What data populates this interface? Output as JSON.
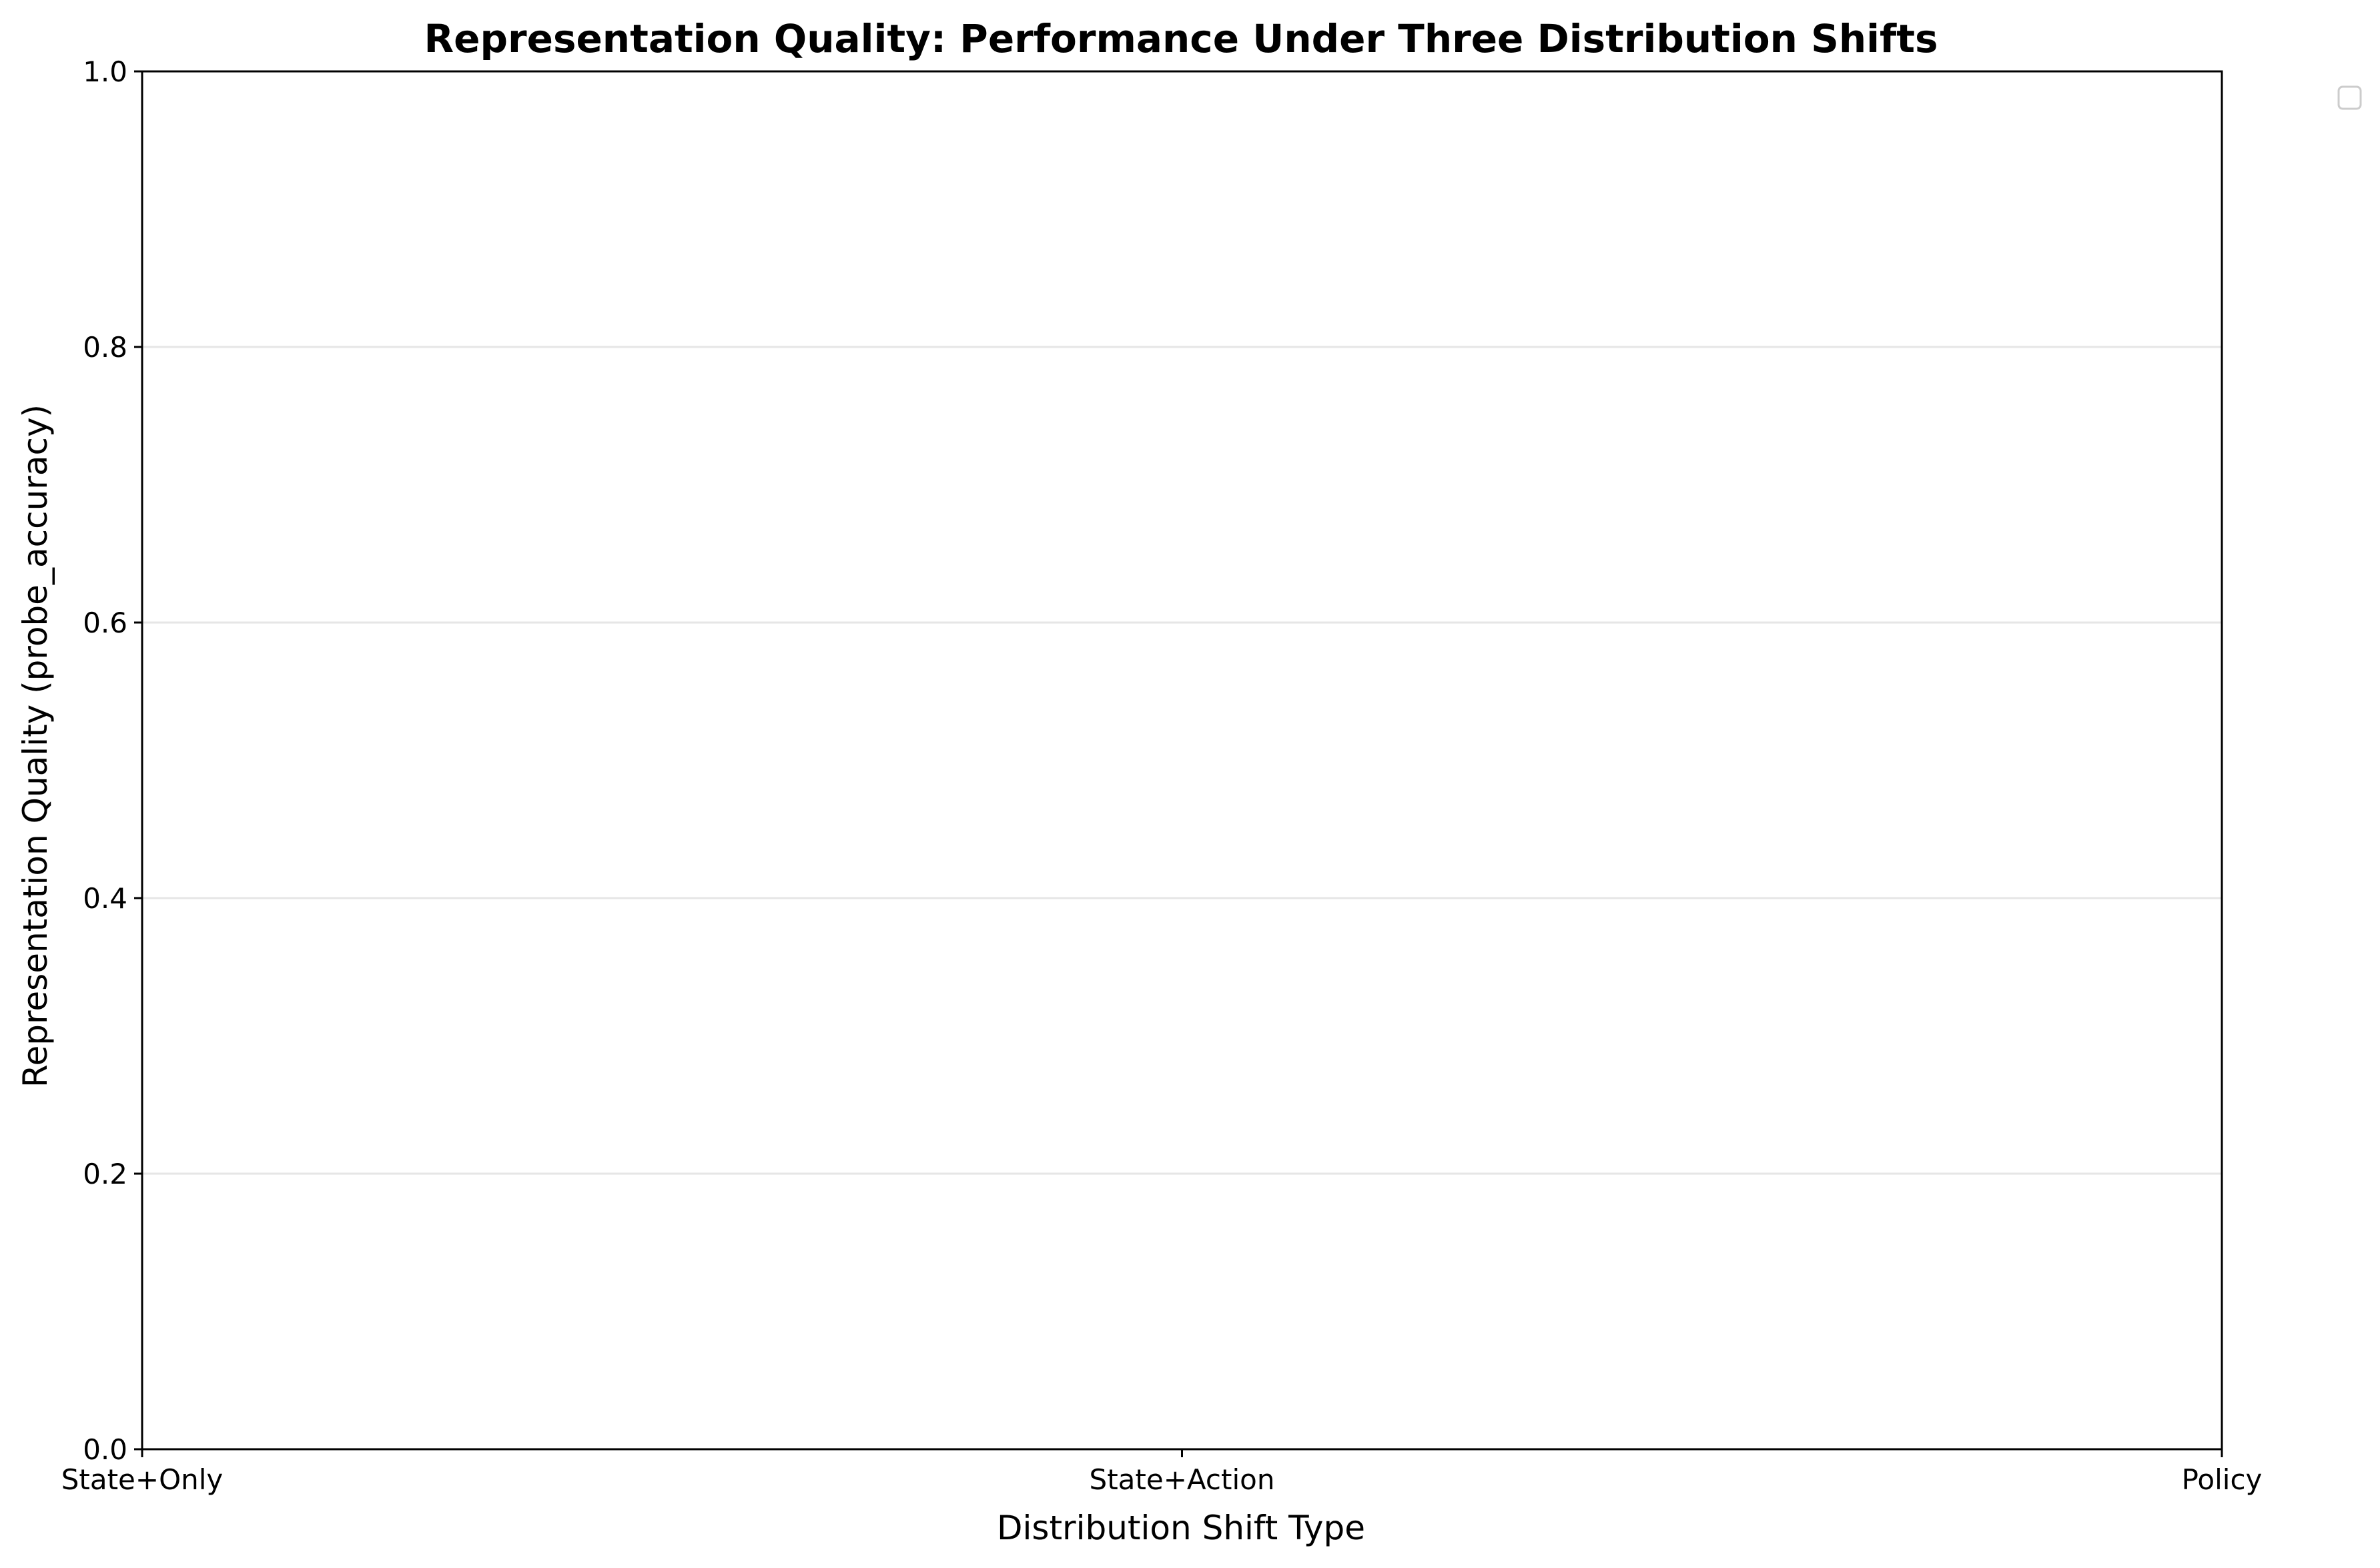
{
  "chart_data": {
    "type": "bar",
    "title": "Representation Quality: Performance Under Three Distribution Shifts",
    "xlabel": "Distribution Shift Type",
    "ylabel": "Representation Quality (probe_accuracy)",
    "categories": [
      "State+Only",
      "State+Action",
      "Policy"
    ],
    "series": [],
    "ylim": [
      0,
      1.0
    ],
    "yticks": [
      "0.0",
      "0.2",
      "0.4",
      "0.6",
      "0.8",
      "1.0"
    ],
    "grid": "y",
    "legend": {
      "placement": "upper-right-outside",
      "entries": []
    },
    "colors": {
      "axis": "#000000",
      "grid": "#e6e6e6",
      "legend_border": "#cccccc",
      "background": "#ffffff"
    }
  }
}
